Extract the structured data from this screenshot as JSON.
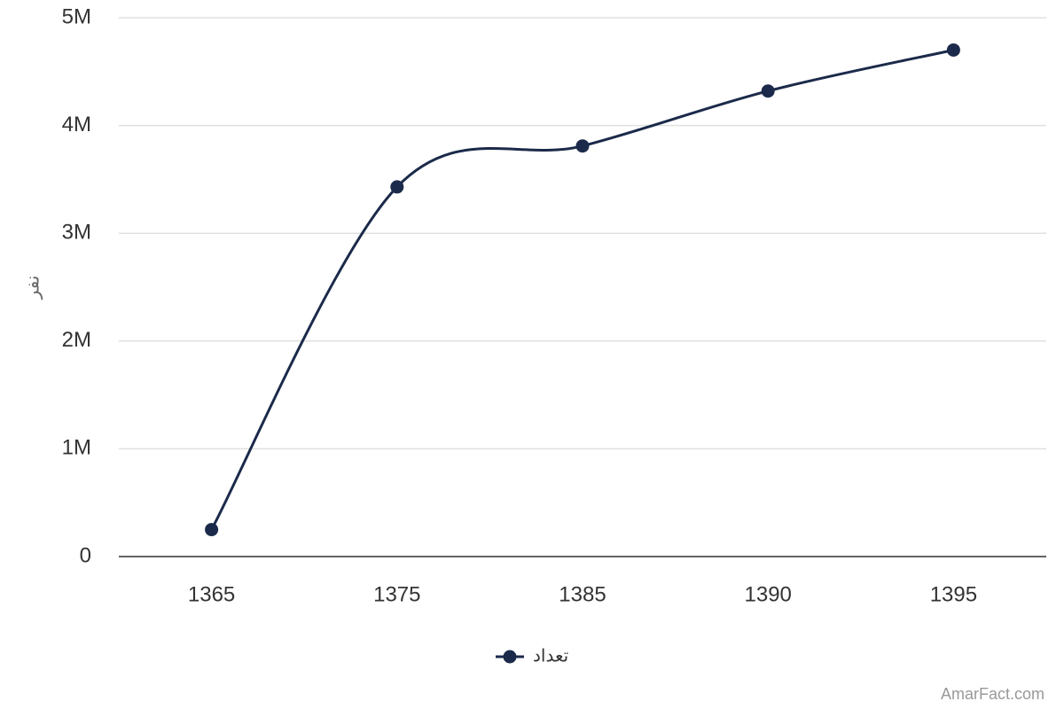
{
  "chart_data": {
    "type": "line",
    "y_label": "نفر",
    "categories": [
      "1365",
      "1375",
      "1385",
      "1390",
      "1395"
    ],
    "series": [
      {
        "name": "تعداد",
        "color": "#1b2a4a",
        "values": [
          250000,
          3430000,
          3810000,
          4320000,
          4700000
        ]
      }
    ],
    "ylim": [
      0,
      5000000
    ],
    "yticks": [
      0,
      {
        "value": 1000000,
        "label": "1M"
      },
      {
        "value": 2000000,
        "label": "2M"
      },
      {
        "value": 3000000,
        "label": "3M"
      },
      {
        "value": 4000000,
        "label": "4M"
      },
      {
        "value": 5000000,
        "label": "5M"
      }
    ],
    "grid": true,
    "legend": "bottom",
    "credit": "AmarFact.com"
  }
}
